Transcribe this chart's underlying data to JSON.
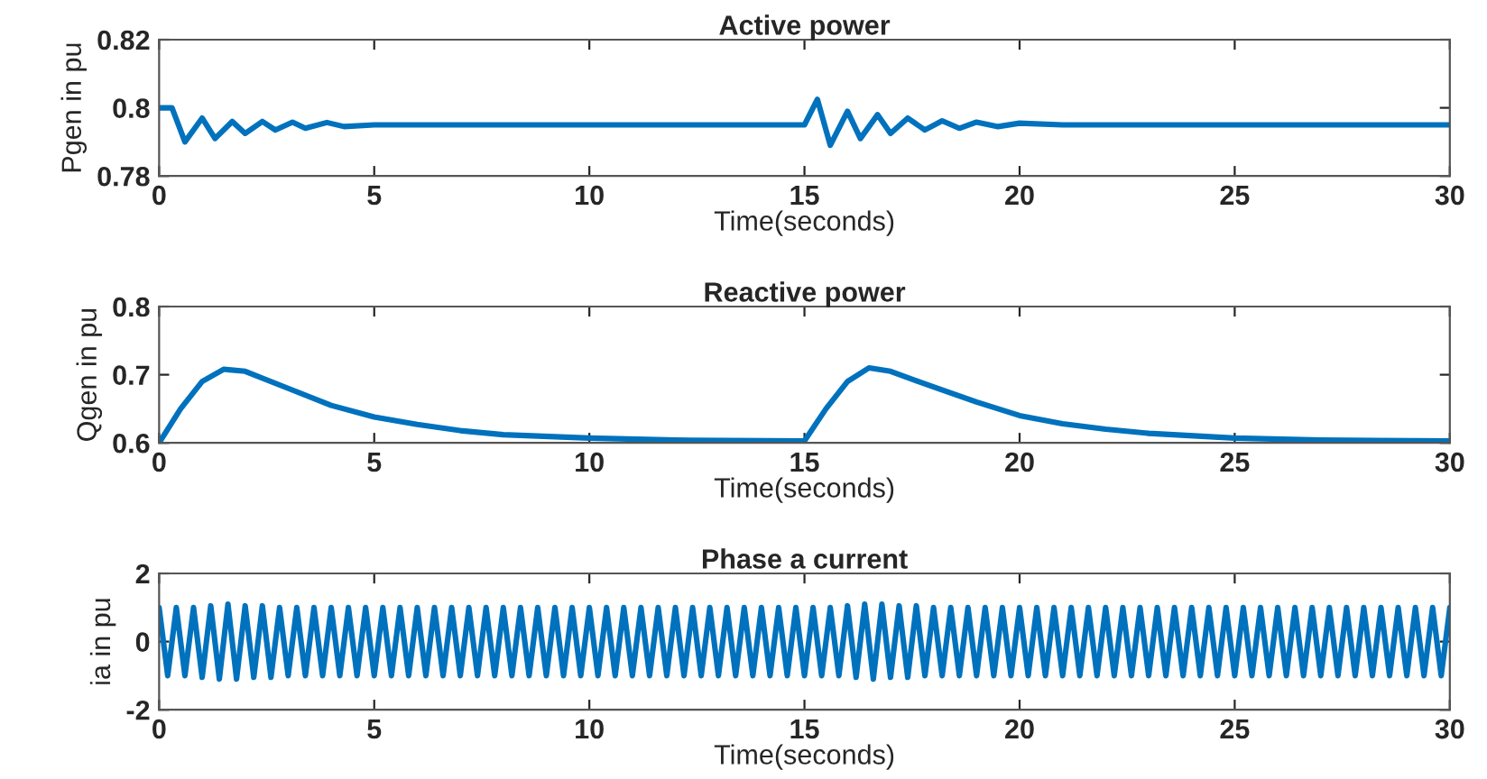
{
  "chart_data": [
    {
      "type": "line",
      "title": "Active power",
      "xlabel": "Time(seconds)",
      "ylabel": "Pgen in pu",
      "xlim": [
        0,
        30
      ],
      "ylim": [
        0.78,
        0.82
      ],
      "xticks": [
        0,
        5,
        10,
        15,
        20,
        25,
        30
      ],
      "yticks": [
        0.78,
        0.8,
        0.82
      ],
      "grid": false,
      "series": [
        {
          "color": "#0072bd",
          "x": [
            0,
            0.3,
            0.6,
            1.0,
            1.3,
            1.7,
            2.0,
            2.4,
            2.7,
            3.1,
            3.4,
            3.9,
            4.3,
            5,
            15,
            15.3,
            15.6,
            16.0,
            16.3,
            16.7,
            17.0,
            17.4,
            17.8,
            18.2,
            18.6,
            19.0,
            19.5,
            20,
            21,
            30
          ],
          "values": [
            0.8,
            0.8,
            0.79,
            0.797,
            0.791,
            0.796,
            0.7925,
            0.796,
            0.7935,
            0.7958,
            0.794,
            0.7957,
            0.7945,
            0.795,
            0.795,
            0.8025,
            0.789,
            0.799,
            0.791,
            0.798,
            0.7925,
            0.797,
            0.7935,
            0.7962,
            0.794,
            0.7958,
            0.7945,
            0.7955,
            0.795,
            0.795
          ]
        }
      ]
    },
    {
      "type": "line",
      "title": "Reactive power",
      "xlabel": "Time(seconds)",
      "ylabel": "Qgen in pu",
      "xlim": [
        0,
        30
      ],
      "ylim": [
        0.6,
        0.8
      ],
      "xticks": [
        0,
        5,
        10,
        15,
        20,
        25,
        30
      ],
      "yticks": [
        0.6,
        0.7,
        0.8
      ],
      "grid": false,
      "series": [
        {
          "color": "#0072bd",
          "x": [
            0,
            0.5,
            1,
            1.5,
            2,
            3,
            4,
            5,
            6,
            7,
            8,
            10,
            12,
            15,
            15.5,
            16,
            16.5,
            17,
            18,
            19,
            20,
            21,
            22,
            23,
            25,
            27,
            30
          ],
          "values": [
            0.6,
            0.65,
            0.69,
            0.708,
            0.705,
            0.68,
            0.655,
            0.638,
            0.627,
            0.618,
            0.612,
            0.607,
            0.604,
            0.603,
            0.65,
            0.69,
            0.71,
            0.705,
            0.682,
            0.66,
            0.64,
            0.628,
            0.62,
            0.614,
            0.607,
            0.604,
            0.603
          ]
        }
      ]
    },
    {
      "type": "line",
      "title": "Phase a current",
      "xlabel": "Time(seconds)",
      "ylabel": "ia in pu",
      "xlim": [
        0,
        30
      ],
      "ylim": [
        -2,
        2
      ],
      "xticks": [
        0,
        5,
        10,
        15,
        20,
        25,
        30
      ],
      "yticks": [
        -2,
        0,
        2
      ],
      "grid": false,
      "series": [
        {
          "color": "#0072bd",
          "x": [
            0,
            0.2,
            0.4,
            0.6,
            0.8,
            1,
            1.2,
            1.4,
            1.6,
            1.8,
            2,
            2.2,
            2.4,
            2.6,
            2.8,
            3,
            3.2,
            3.4,
            3.6,
            3.8,
            4,
            4.2,
            4.4,
            4.6,
            4.8,
            5,
            5.2,
            5.4,
            5.6,
            5.8,
            6,
            6.2,
            6.4,
            6.6,
            6.8,
            7,
            7.2,
            7.4,
            7.6,
            7.8,
            8,
            8.2,
            8.4,
            8.6,
            8.8,
            9,
            9.2,
            9.4,
            9.6,
            9.8,
            10,
            10.2,
            10.4,
            10.6,
            10.8,
            11,
            11.2,
            11.4,
            11.6,
            11.8,
            12,
            12.2,
            12.4,
            12.6,
            12.8,
            13,
            13.2,
            13.4,
            13.6,
            13.8,
            14,
            14.2,
            14.4,
            14.6,
            14.8,
            15,
            15.2,
            15.4,
            15.6,
            15.8,
            16,
            16.2,
            16.4,
            16.6,
            16.8,
            17,
            17.2,
            17.4,
            17.6,
            17.8,
            18,
            18.2,
            18.4,
            18.6,
            18.8,
            19,
            19.2,
            19.4,
            19.6,
            19.8,
            20,
            20.2,
            20.4,
            20.6,
            20.8,
            21,
            21.2,
            21.4,
            21.6,
            21.8,
            22,
            22.2,
            22.4,
            22.6,
            22.8,
            23,
            23.2,
            23.4,
            23.6,
            23.8,
            24,
            24.2,
            24.4,
            24.6,
            24.8,
            25,
            25.2,
            25.4,
            25.6,
            25.8,
            26,
            26.2,
            26.4,
            26.6,
            26.8,
            27,
            27.2,
            27.4,
            27.6,
            27.8,
            28,
            28.2,
            28.4,
            28.6,
            28.8,
            29,
            29.2,
            29.4,
            29.6,
            29.8,
            30
          ],
          "values": [
            1,
            -1,
            1,
            -1,
            1,
            -1.05,
            1.05,
            -1.1,
            1.1,
            -1.1,
            1.05,
            -1.05,
            1.05,
            -1.05,
            1,
            -1,
            1,
            -1,
            1,
            -1,
            1,
            -1,
            1,
            -1,
            1,
            -1,
            1,
            -1,
            1,
            -1,
            1,
            -1,
            1,
            -1,
            1,
            -1,
            1,
            -1,
            1,
            -1,
            1,
            -1,
            1,
            -1,
            1,
            -1,
            1,
            -1,
            1,
            -1,
            1,
            -1,
            1,
            -1,
            1,
            -1,
            1,
            -1,
            1,
            -1,
            1,
            -1,
            1,
            -1,
            1,
            -1,
            1,
            -1,
            1,
            -1,
            1,
            -1,
            1,
            -1,
            1,
            -1,
            1,
            -1,
            1,
            -1,
            1.05,
            -1.05,
            1.1,
            -1.1,
            1.1,
            -1.05,
            1.05,
            -1.05,
            1.05,
            -1,
            1,
            -1,
            1,
            -1,
            1,
            -1,
            1,
            -1,
            1,
            -1,
            1,
            -1,
            1,
            -1,
            1,
            -1,
            1,
            -1,
            1,
            -1,
            1,
            -1,
            1,
            -1,
            1,
            -1,
            1,
            -1,
            1,
            -1,
            1,
            -1,
            1,
            -1,
            1,
            -1,
            1,
            -1,
            1,
            -1,
            1,
            -1,
            1,
            -1,
            1,
            -1,
            1,
            -1,
            1,
            -1,
            1,
            -1,
            1,
            -1,
            1,
            -1,
            1,
            -1,
            1,
            -1,
            1
          ]
        }
      ]
    }
  ]
}
